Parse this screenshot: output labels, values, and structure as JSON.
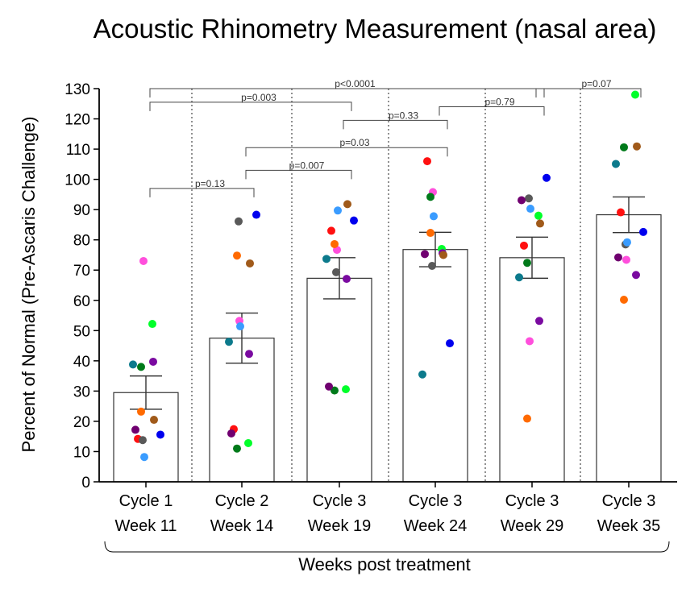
{
  "chart_data": {
    "type": "bar",
    "title": "Acoustic Rhinometry Measurement (nasal area)",
    "ylabel": "Percent of Normal (Pre-Ascaris Challenge)",
    "xlabel": "Weeks post treatment",
    "ylim": [
      0,
      130
    ],
    "yticks": [
      "0",
      "10",
      "20",
      "30",
      "40",
      "50",
      "60",
      "70",
      "80",
      "90",
      "100",
      "110",
      "120",
      "130"
    ],
    "categories": [
      {
        "line1": "Cycle 1",
        "line2": "Week 11"
      },
      {
        "line1": "Cycle 2",
        "line2": "Week 14"
      },
      {
        "line1": "Cycle 3",
        "line2": "Week 19"
      },
      {
        "line1": "Cycle 3",
        "line2": "Week 24"
      },
      {
        "line1": "Cycle 3",
        "line2": "Week 29"
      },
      {
        "line1": "Cycle 3",
        "line2": "Week 35"
      }
    ],
    "means": [
      29.5,
      47.5,
      67.3,
      76.8,
      74.1,
      88.3
    ],
    "sem": [
      5.5,
      8.3,
      6.8,
      5.7,
      6.8,
      5.9
    ],
    "subject_colors": [
      "#ff4fdc",
      "#00ff2a",
      "#0c7a8c",
      "#007a1a",
      "#7a0aa0",
      "#a05a1a",
      "#ff6a00",
      "#ff1010",
      "#0000ee",
      "#595959",
      "#3a9cff",
      "#700070"
    ],
    "points": [
      [
        73,
        52.2,
        38.8,
        38,
        39.7,
        20.5,
        23.2,
        14.2,
        15.6,
        13.8,
        8.2,
        17.2
      ],
      [
        53.2,
        12.8,
        46.3,
        11,
        42.3,
        72.2,
        74.8,
        17.4,
        88.3,
        86.1,
        51.4,
        16
      ],
      [
        76.7,
        30.6,
        73.7,
        30.2,
        67.1,
        91.8,
        78.6,
        83,
        86.4,
        69.3,
        89.7,
        31.5
      ],
      [
        95.8,
        77,
        35.5,
        94.2,
        75.6,
        75,
        82.3,
        106,
        45.8,
        71.4,
        87.8,
        75.3
      ],
      [
        46.5,
        88,
        67.6,
        72.4,
        53.2,
        85.4,
        20.9,
        78.1,
        100.5,
        93.7,
        90.3,
        93.1
      ],
      [
        73.4,
        128,
        105.1,
        110.6,
        68.4,
        110.9,
        60.2,
        89.1,
        82.6,
        78.5,
        79.2,
        74.2
      ]
    ],
    "comparisons": [
      {
        "from": 0,
        "to": 1,
        "label": "p=0.13",
        "level": 97
      },
      {
        "from": 1,
        "to": 2,
        "label": "p=0.007",
        "level": 103
      },
      {
        "from": 1,
        "to": 3,
        "label": "p=0.03",
        "level": 110.5
      },
      {
        "from": 2,
        "to": 3,
        "label": "p=0.33",
        "level": 119.5
      },
      {
        "from": 3,
        "to": 4,
        "label": "p=0.79",
        "level": 124
      },
      {
        "from": 0,
        "to": 2,
        "label": "p=0.003",
        "level": 125.5
      },
      {
        "from": 0,
        "to": 4,
        "label": "p<0.0001",
        "level": 130
      },
      {
        "from": 4,
        "to": 5,
        "label": "p=0.07",
        "level": 130
      }
    ]
  }
}
